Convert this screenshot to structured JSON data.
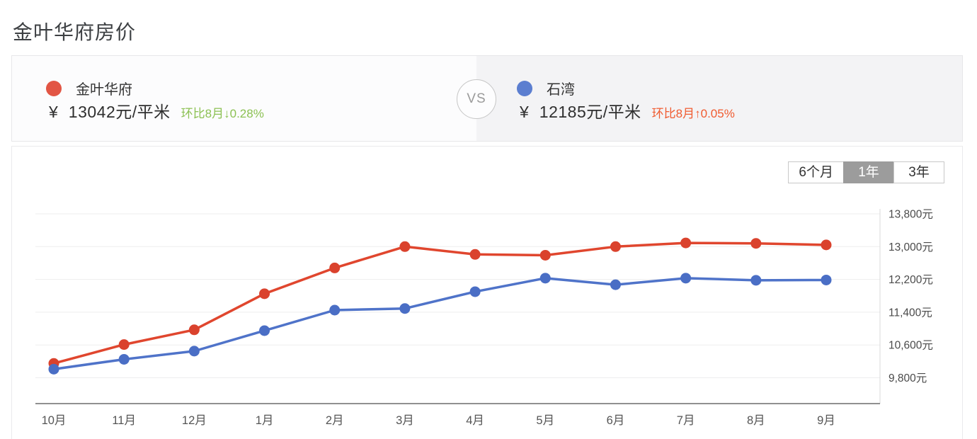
{
  "page": {
    "title": "金叶华府房价"
  },
  "comparison": {
    "vs_label": "VS",
    "left": {
      "name": "金叶华府",
      "currency": "¥",
      "price": "13042元/平米",
      "change": "环比8月↓0.28%",
      "change_color": "#8cc153",
      "dot_color": "#e25544"
    },
    "right": {
      "name": "石湾",
      "currency": "¥",
      "price": "12185元/平米",
      "change": "环比8月↑0.05%",
      "change_color": "#f05b30",
      "dot_color": "#5b7ed0"
    }
  },
  "range_selector": {
    "options": [
      {
        "label": "6个月",
        "selected": false
      },
      {
        "label": "1年",
        "selected": true
      },
      {
        "label": "3年",
        "selected": false
      }
    ]
  },
  "chart_data": {
    "type": "line",
    "categories": [
      "10月",
      "11月",
      "12月",
      "1月",
      "2月",
      "3月",
      "4月",
      "5月",
      "6月",
      "7月",
      "8月",
      "9月"
    ],
    "series": [
      {
        "name": "金叶华府",
        "color": "#e0462e",
        "dot_color": "#da422d",
        "values": [
          10150,
          10610,
          10970,
          11850,
          12480,
          13000,
          12810,
          12790,
          13000,
          13090,
          13079,
          13042
        ]
      },
      {
        "name": "石湾",
        "color": "#4f73c9",
        "dot_color": "#4a6ec5",
        "values": [
          10010,
          10250,
          10450,
          10950,
          11450,
          11490,
          11900,
          12230,
          12070,
          12230,
          12179,
          12185
        ]
      }
    ],
    "y_ticks": [
      {
        "value": 13800,
        "label": "13,800元"
      },
      {
        "value": 13000,
        "label": "13,000元"
      },
      {
        "value": 12200,
        "label": "12,200元"
      },
      {
        "value": 11400,
        "label": "11,400元"
      },
      {
        "value": 10600,
        "label": "10,600元"
      },
      {
        "value": 9800,
        "label": "9,800元"
      }
    ],
    "ylim": [
      9340,
      13800
    ],
    "grid": true,
    "legend_position": "top"
  }
}
